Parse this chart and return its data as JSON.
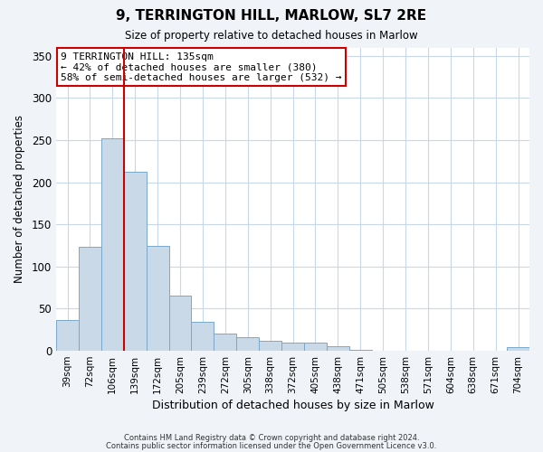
{
  "title": "9, TERRINGTON HILL, MARLOW, SL7 2RE",
  "subtitle": "Size of property relative to detached houses in Marlow",
  "xlabel": "Distribution of detached houses by size in Marlow",
  "ylabel": "Number of detached properties",
  "bar_labels": [
    "39sqm",
    "72sqm",
    "106sqm",
    "139sqm",
    "172sqm",
    "205sqm",
    "239sqm",
    "272sqm",
    "305sqm",
    "338sqm",
    "372sqm",
    "405sqm",
    "438sqm",
    "471sqm",
    "505sqm",
    "538sqm",
    "571sqm",
    "604sqm",
    "638sqm",
    "671sqm",
    "704sqm"
  ],
  "bar_values": [
    37,
    123,
    252,
    212,
    124,
    65,
    34,
    20,
    16,
    12,
    10,
    10,
    5,
    1,
    0,
    0,
    0,
    0,
    0,
    0,
    4
  ],
  "bar_color": "#c9d9e8",
  "bar_edge_color": "#7aa8c9",
  "property_line_color": "#cc0000",
  "annotation_text": "9 TERRINGTON HILL: 135sqm\n← 42% of detached houses are smaller (380)\n58% of semi-detached houses are larger (532) →",
  "annotation_box_color": "#ffffff",
  "annotation_box_edge_color": "#cc0000",
  "ylim": [
    0,
    360
  ],
  "yticks": [
    0,
    50,
    100,
    150,
    200,
    250,
    300,
    350
  ],
  "footer1": "Contains HM Land Registry data © Crown copyright and database right 2024.",
  "footer2": "Contains public sector information licensed under the Open Government Licence v3.0.",
  "background_color": "#f0f4f8",
  "plot_background_color": "#ffffff",
  "grid_color": "#c8d8e8"
}
